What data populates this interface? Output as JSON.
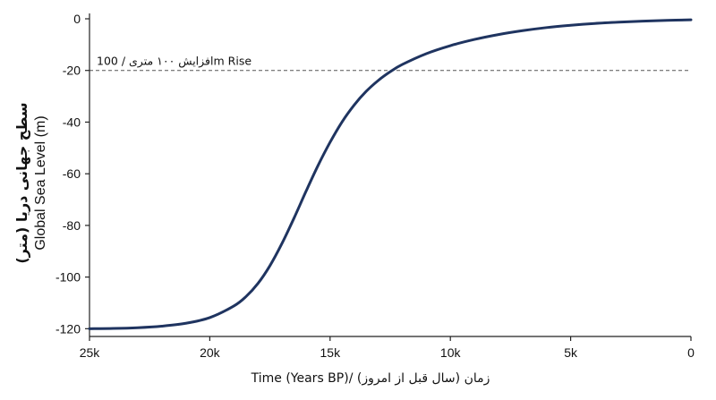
{
  "chart_data": {
    "type": "line",
    "title": "",
    "xlabel": "Time (Years BP)/ (زمان (سال قبل از امروز",
    "ylabel_fa": "سطح جهانی دریا (متر)",
    "ylabel_en": "Global Sea Level (m)",
    "xlim": [
      25000,
      0
    ],
    "ylim": [
      -123,
      0
    ],
    "x_ticks": [
      {
        "value": 25000,
        "label": "25k"
      },
      {
        "value": 20000,
        "label": "20k"
      },
      {
        "value": 15000,
        "label": "15k"
      },
      {
        "value": 10000,
        "label": "10k"
      },
      {
        "value": 5000,
        "label": "5k"
      },
      {
        "value": 0,
        "label": "0"
      }
    ],
    "y_ticks": [
      {
        "value": 0,
        "label": "0"
      },
      {
        "value": -20,
        "label": "-20"
      },
      {
        "value": -40,
        "label": "-40"
      },
      {
        "value": -60,
        "label": "-60"
      },
      {
        "value": -80,
        "label": "-80"
      },
      {
        "value": -100,
        "label": "-100"
      },
      {
        "value": -120,
        "label": "-120"
      }
    ],
    "grid": false,
    "series": [
      {
        "color": "#1f3460",
        "x": [
          25000,
          24000,
          23000,
          22000,
          21000,
          20000,
          19000,
          18500,
          18000,
          17500,
          17000,
          16500,
          16000,
          15500,
          15000,
          14500,
          14000,
          13500,
          13000,
          12500,
          12000,
          11000,
          10000,
          9000,
          8000,
          7000,
          6000,
          5000,
          4000,
          3000,
          2000,
          1000,
          0
        ],
        "y": [
          -120,
          -119.9,
          -119.6,
          -119,
          -117.9,
          -115.7,
          -111.2,
          -107.6,
          -102.5,
          -95.6,
          -87.0,
          -77.2,
          -66.8,
          -56.8,
          -47.8,
          -39.9,
          -33.4,
          -28.1,
          -23.9,
          -20.5,
          -17.7,
          -13.5,
          -10.4,
          -8.0,
          -6.1,
          -4.6,
          -3.4,
          -2.5,
          -1.8,
          -1.3,
          -0.9,
          -0.6,
          -0.4
        ]
      }
    ],
    "reference_line": {
      "y": -20,
      "style": "dashed",
      "color": "#555555",
      "label": "افزایش ۱۰۰ متری / 100m Rise"
    }
  }
}
